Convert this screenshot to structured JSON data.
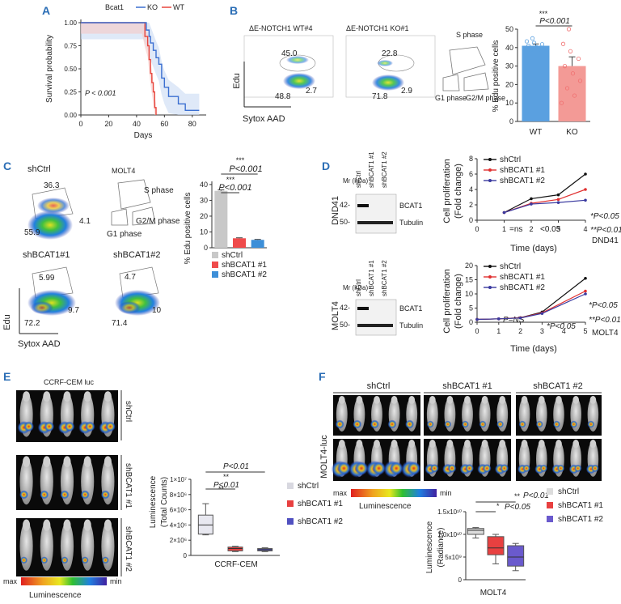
{
  "panel_labels": {
    "a": "A",
    "b": "B",
    "c": "C",
    "d": "D",
    "e": "E",
    "f": "F"
  },
  "chart_data": [
    {
      "id": "A",
      "type": "line",
      "title": "",
      "legend_title": "Bcat1",
      "legend": [
        "KO",
        "WT"
      ],
      "colors": {
        "KO": "#3b6fd1",
        "WT": "#e8453c",
        "band": "#c9dbf4"
      },
      "xlabel": "Days",
      "ylabel": "Survival probability",
      "xticks": [
        "0",
        "20",
        "40",
        "60",
        "80"
      ],
      "yticks": [
        "0.00",
        "0.25",
        "0.50",
        "0.75",
        "1.00"
      ],
      "xlim": [
        0,
        90
      ],
      "ylim": [
        0,
        1
      ],
      "annotation": "P < 0.001",
      "series": [
        {
          "name": "WT",
          "x": [
            0,
            44,
            46,
            48,
            49,
            50,
            51,
            52,
            53,
            54
          ],
          "y": [
            1,
            1,
            0.85,
            0.75,
            0.6,
            0.45,
            0.35,
            0.25,
            0.08,
            0
          ]
        },
        {
          "name": "KO",
          "x": [
            0,
            45,
            47,
            49,
            50,
            52,
            54,
            56,
            58,
            60,
            63,
            70,
            75,
            85
          ],
          "y": [
            1,
            1,
            0.92,
            0.85,
            0.78,
            0.7,
            0.62,
            0.55,
            0.4,
            0.3,
            0.2,
            0.12,
            0.05,
            0.05
          ]
        }
      ]
    },
    {
      "id": "B-flow",
      "type": "scatter",
      "plots": [
        {
          "title": "ΔE-NOTCH1 WT#4",
          "s": "45.0",
          "g1": "48.8",
          "g2": "2.7"
        },
        {
          "title": "ΔE-NOTCH1 KO#1",
          "s": "22.8",
          "g1": "71.8",
          "g2": "2.9"
        }
      ],
      "ylabel": "Edu",
      "xlabel": "Sytox AAD",
      "schematic": {
        "s": "S phase",
        "g1": "G1 phase",
        "g2": "G2/M phase"
      }
    },
    {
      "id": "B-bar",
      "type": "bar",
      "categories": [
        "WT",
        "KO"
      ],
      "values": [
        41,
        30
      ],
      "errors": [
        1,
        5
      ],
      "colors": [
        "#5aa0e0",
        "#f39a96"
      ],
      "ylabel": "% Edu positive cells",
      "yticks": [
        "0",
        "10",
        "20",
        "30",
        "40",
        "50"
      ],
      "ylim": [
        0,
        50
      ],
      "sig": "***",
      "pval": "P<0.001"
    },
    {
      "id": "C-flow",
      "type": "scatter",
      "plots": [
        {
          "title": "shCtrl",
          "s": "36.3",
          "g1": "55.9",
          "g2": "4.1"
        },
        {
          "title": "shBCAT1#1",
          "s": "5.99",
          "g1": "72.2",
          "g2": "9.7"
        },
        {
          "title": "shBCAT1#2",
          "s": "4.7",
          "g1": "71.4",
          "g2": "10"
        }
      ],
      "cell_line": "MOLT4",
      "ylabel": "Edu",
      "xlabel": "Sytox AAD",
      "schematic": {
        "s": "S phase",
        "g1": "G1 phase",
        "g2": "G2/M phase"
      }
    },
    {
      "id": "C-bar",
      "type": "bar",
      "categories": [
        "shCtrl",
        "shBCAT1 #1",
        "shBCAT1 #2"
      ],
      "values": [
        36,
        6,
        5
      ],
      "errors": [
        0.6,
        0.3,
        0.3
      ],
      "colors": [
        "#c8c8c8",
        "#ef4b4b",
        "#3d8fd8"
      ],
      "ylabel": "% Edu positive cells",
      "yticks": [
        "0",
        "10",
        "20",
        "30",
        "40"
      ],
      "ylim": [
        0,
        42
      ],
      "sig": [
        "***",
        "***"
      ],
      "pvals": [
        "P<0.001",
        "P<0.001"
      ]
    },
    {
      "id": "D-blot-top",
      "type": "table",
      "cell_line": "DND41",
      "lanes": [
        "shCtrl",
        "shBCAT1 #1",
        "shBCAT1 #2"
      ],
      "mr": "Mr (kDa)",
      "markers": [
        "42-",
        "50-"
      ],
      "bands": [
        "BCAT1",
        "Tubulin"
      ]
    },
    {
      "id": "D-line-top",
      "type": "line",
      "legend": [
        "shCtrl",
        "shBCAT1 #1",
        "shBCAT1 #2"
      ],
      "colors": [
        "#111111",
        "#e03030",
        "#3a3aa0"
      ],
      "x": [
        1,
        2,
        3,
        4
      ],
      "series": [
        {
          "name": "shCtrl",
          "values": [
            1,
            2.8,
            3.3,
            6.0
          ]
        },
        {
          "name": "shBCAT1 #1",
          "values": [
            1,
            2.2,
            2.7,
            4.0
          ]
        },
        {
          "name": "shBCAT1 #2",
          "values": [
            1,
            2.1,
            2.3,
            2.6
          ]
        }
      ],
      "xlabel": "Time (days)",
      "ylabel": "Cell proliferation (Fold change)",
      "xticks": [
        "0",
        "1",
        "2",
        "3",
        "4"
      ],
      "yticks": [
        "0",
        "2",
        "4",
        "6",
        "8"
      ],
      "xlim": [
        0,
        4
      ],
      "ylim": [
        0,
        8
      ],
      "annotations": [
        "*P<0.05",
        "**P<0.01",
        "=ns",
        "<0.05",
        "DND41"
      ]
    },
    {
      "id": "D-blot-bottom",
      "type": "table",
      "cell_line": "MOLT4",
      "lanes": [
        "shCtrl",
        "shBCAT1 #1",
        "shBCAT1 #2"
      ],
      "mr": "Mr (kDa)",
      "markers": [
        "42-",
        "50-"
      ],
      "bands": [
        "BCAT1",
        "Tubulin"
      ]
    },
    {
      "id": "D-line-bottom",
      "type": "line",
      "legend": [
        "shCtrl",
        "shBCAT1 #1",
        "shBCAT1 #2"
      ],
      "colors": [
        "#111111",
        "#e03030",
        "#3a3aa0"
      ],
      "x": [
        0,
        1,
        2,
        3,
        5
      ],
      "series": [
        {
          "name": "shCtrl",
          "values": [
            1,
            1.2,
            1.6,
            3.6,
            15.5
          ]
        },
        {
          "name": "shBCAT1 #1",
          "values": [
            1,
            1.2,
            1.6,
            3.3,
            11.0
          ]
        },
        {
          "name": "shBCAT1 #2",
          "values": [
            1,
            1.2,
            1.5,
            3.1,
            10.0
          ]
        }
      ],
      "xlabel": "Time (days)",
      "ylabel": "Cell proliferation (Fold change)",
      "xticks": [
        "0",
        "1",
        "2",
        "3",
        "4",
        "5"
      ],
      "yticks": [
        "0",
        "5",
        "10",
        "15",
        "20"
      ],
      "xlim": [
        0,
        5
      ],
      "ylim": [
        0,
        20
      ],
      "annotations": [
        "*P<0.05",
        "**P<0.01",
        "P=NS",
        "*P<0.05",
        "MOLT4"
      ]
    },
    {
      "id": "E-box",
      "type": "bar",
      "categories": [
        "shCtrl",
        "shBCAT1 #1",
        "shBCAT1 #2"
      ],
      "boxes": [
        {
          "name": "shCtrl",
          "min": 2700000,
          "q1": 2800000,
          "median": 4000000,
          "q3": 5300000,
          "max": 6800000
        },
        {
          "name": "shBCAT1 #1",
          "min": 500000,
          "q1": 600000,
          "median": 900000,
          "q3": 1100000,
          "max": 1200000
        },
        {
          "name": "shBCAT1 #2",
          "min": 500000,
          "q1": 600000,
          "median": 750000,
          "q3": 900000,
          "max": 1000000
        }
      ],
      "colors": [
        "#e8e8f0",
        "#e84040",
        "#5050c0"
      ],
      "ylabel": "Luminescence (Total Counts)",
      "yticks": [
        "0",
        "2×10⁶",
        "4×10⁶",
        "6×10⁶",
        "8×10⁶",
        "1×10⁷"
      ],
      "ylim": [
        0,
        10000000
      ],
      "xlabel": "CCRF-CEM",
      "sig": [
        "**",
        "**"
      ],
      "pvals": [
        "P<0.01",
        "P<0.01"
      ]
    },
    {
      "id": "F-box",
      "type": "bar",
      "categories": [
        "shCtrl",
        "shBCAT1 #1",
        "shBCAT1 #2"
      ],
      "boxes": [
        {
          "name": "shCtrl",
          "min": 9200000000,
          "q1": 10000000000,
          "median": 10900000000,
          "q3": 11300000000,
          "max": 11500000000
        },
        {
          "name": "shBCAT1 #1",
          "min": 3500000000,
          "q1": 5500000000,
          "median": 7000000000,
          "q3": 9500000000,
          "max": 10000000000
        },
        {
          "name": "shBCAT1 #2",
          "min": 2000000000,
          "q1": 3000000000,
          "median": 5000000000,
          "q3": 7500000000,
          "max": 8000000000
        }
      ],
      "colors": [
        "#dcdcdc",
        "#e84040",
        "#6a5acd"
      ],
      "ylabel": "Luminescence (Radiance)",
      "yticks": [
        "0",
        "5x10⁹",
        "1.0x10¹⁰",
        "1.5x10¹⁰"
      ],
      "ylim": [
        0,
        15000000000
      ],
      "xlabel": "MOLT4",
      "sig": [
        "*",
        "**"
      ],
      "pvals": [
        "P<0.05",
        "P<0.01"
      ]
    }
  ],
  "panel_e": {
    "title": "CCRF-CEM luc",
    "groups": [
      "shCtrl",
      "shBCAT1 #1",
      "shBCAT1 #2"
    ],
    "scale_max": "max",
    "scale_min": "min",
    "scale_label": "Luminescence"
  },
  "panel_f": {
    "label": "MOLT4-luc",
    "groups": [
      "shCtrl",
      "shBCAT1 #1",
      "shBCAT1 #2"
    ],
    "scale_max": "max",
    "scale_min": "min",
    "scale_label": "Luminescence"
  }
}
